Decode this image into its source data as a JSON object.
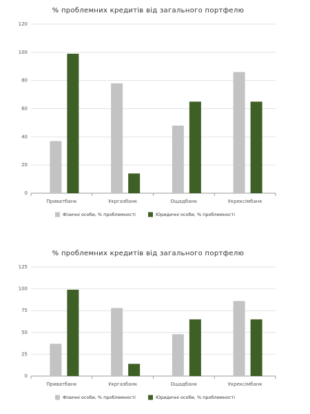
{
  "chart_data": [
    {
      "type": "bar",
      "title": "% проблемних кредитів від загального портфелю",
      "categories": [
        "Приватбанк",
        "Укргазбанк",
        "Ощадбанк",
        "Укрексімбанк"
      ],
      "series": [
        {
          "name": "Фізичні особи, % проблемності",
          "color": "#c3c3c3",
          "values": [
            37,
            78,
            48,
            86
          ]
        },
        {
          "name": "Юридичні особи, % проблемності",
          "color": "#3e5f26",
          "values": [
            99,
            14,
            65,
            65
          ]
        }
      ],
      "ylim": [
        0,
        120
      ],
      "yticks": [
        0,
        20,
        40,
        60,
        80,
        100,
        120
      ],
      "grid": true
    },
    {
      "type": "bar",
      "title": "% проблемних кредитів від загального портфелю",
      "categories": [
        "Приватбанк",
        "Укргазбанк",
        "Ощадбанк",
        "Укрексімбанк"
      ],
      "series": [
        {
          "name": "Фізичні особи, % проблемності",
          "color": "#c3c3c3",
          "values": [
            37,
            78,
            48,
            86
          ]
        },
        {
          "name": "Юридичні особи, % проблемності",
          "color": "#3e5f26",
          "values": [
            99,
            14,
            65,
            65
          ]
        }
      ],
      "ylim": [
        0,
        125
      ],
      "yticks": [
        0,
        25,
        50,
        75,
        100,
        125
      ],
      "grid": true
    }
  ]
}
